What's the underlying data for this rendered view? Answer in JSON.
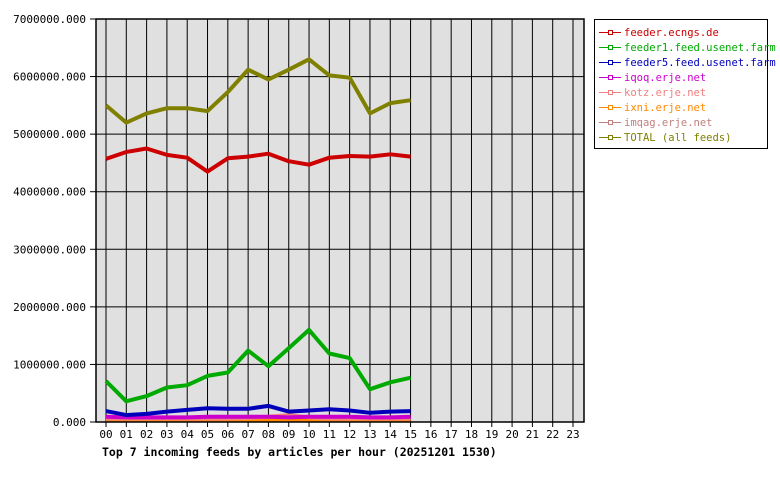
{
  "chart_data": {
    "type": "line",
    "title": "Top 7 incoming feeds by articles per hour (20251201 1530)",
    "xlabel": "",
    "ylabel": "",
    "ylim": [
      0,
      7000000
    ],
    "yticks": [
      "0.000",
      "1000000.000",
      "2000000.000",
      "3000000.000",
      "4000000.000",
      "5000000.000",
      "6000000.000",
      "7000000.000"
    ],
    "categories": [
      "00",
      "01",
      "02",
      "03",
      "04",
      "05",
      "06",
      "07",
      "08",
      "09",
      "10",
      "11",
      "12",
      "13",
      "14",
      "15",
      "16",
      "17",
      "18",
      "19",
      "20",
      "21",
      "22",
      "23"
    ],
    "grid": true,
    "legend_position": "right",
    "plot_background": "#e0e0e0",
    "series": [
      {
        "name": "feeder.ecngs.de",
        "color": "#cc0000",
        "values": [
          4570000,
          4690000,
          4750000,
          4640000,
          4590000,
          4350000,
          4580000,
          4610000,
          4660000,
          4530000,
          4470000,
          4590000,
          4620000,
          4610000,
          4650000,
          4610000
        ]
      },
      {
        "name": "feeder1.feed.usenet.farm",
        "color": "#00aa00",
        "values": [
          710000,
          360000,
          450000,
          600000,
          640000,
          800000,
          860000,
          1240000,
          970000,
          1280000,
          1600000,
          1190000,
          1110000,
          570000,
          690000,
          770000
        ]
      },
      {
        "name": "feeder5.feed.usenet.farm",
        "color": "#0000bb",
        "values": [
          190000,
          120000,
          140000,
          180000,
          210000,
          240000,
          230000,
          230000,
          280000,
          180000,
          200000,
          220000,
          200000,
          160000,
          180000,
          190000
        ]
      },
      {
        "name": "iqoq.erje.net",
        "color": "#cc00cc",
        "values": [
          90000,
          80000,
          80000,
          80000,
          80000,
          90000,
          90000,
          90000,
          90000,
          80000,
          90000,
          90000,
          90000,
          80000,
          80000,
          90000
        ]
      },
      {
        "name": "kotz.erje.net",
        "color": "#f08080",
        "values": [
          60000,
          60000,
          60000,
          60000,
          60000,
          60000,
          60000,
          70000,
          90000,
          120000,
          80000,
          60000,
          60000,
          60000,
          60000,
          60000
        ]
      },
      {
        "name": "ixni.erje.net",
        "color": "#ff8800",
        "values": [
          40000,
          40000,
          40000,
          40000,
          40000,
          40000,
          40000,
          40000,
          40000,
          40000,
          40000,
          40000,
          40000,
          40000,
          40000,
          40000
        ]
      },
      {
        "name": "imqag.erje.net",
        "color": "#c08080",
        "values": [
          50000,
          50000,
          50000,
          50000,
          50000,
          50000,
          50000,
          50000,
          50000,
          50000,
          50000,
          50000,
          50000,
          50000,
          50000,
          50000
        ]
      },
      {
        "name": "TOTAL (all feeds)",
        "color": "#808000",
        "values": [
          5500000,
          5200000,
          5360000,
          5450000,
          5450000,
          5400000,
          5730000,
          6120000,
          5950000,
          6120000,
          6300000,
          6020000,
          5980000,
          5360000,
          5540000,
          5590000
        ]
      }
    ]
  }
}
